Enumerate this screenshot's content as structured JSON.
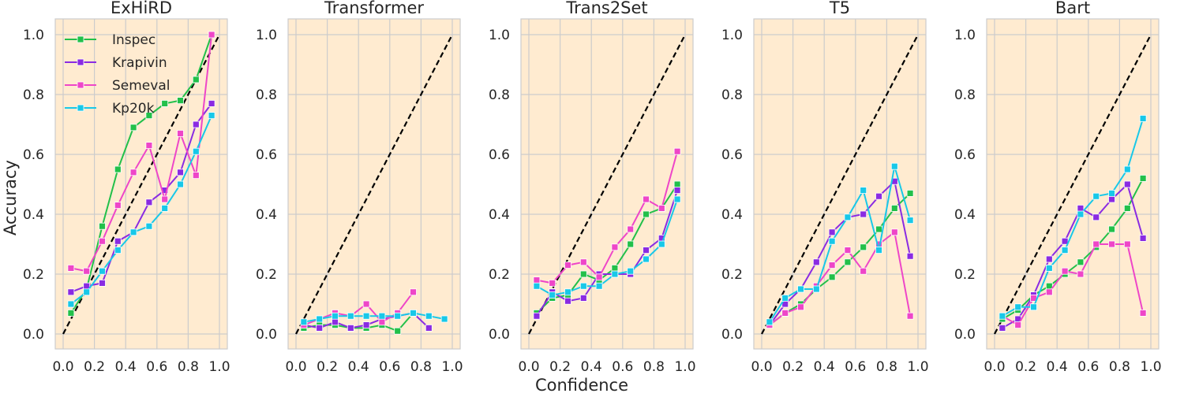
{
  "figure": {
    "xlabel": "Confidence",
    "ylabel": "Accuracy",
    "background": "#ffffff",
    "plot_background": "#ffebd0",
    "grid_color": "#cccccc",
    "diagonal_color": "#000000"
  },
  "legend": {
    "placement": "top-left",
    "entries": [
      "Inspec",
      "Krapivin",
      "Semeval",
      "Kp20k"
    ]
  },
  "series_colors": {
    "Inspec": "#22c04a",
    "Krapivin": "#8a2be2",
    "Semeval": "#ee46c8",
    "Kp20k": "#18c8e8"
  },
  "chart_data": [
    {
      "type": "line",
      "title": "ExHiRD",
      "xlabel": "",
      "ylabel": "Accuracy",
      "xlim": [
        0.0,
        1.0
      ],
      "ylim": [
        0.0,
        1.0
      ],
      "xticks": [
        "0.0",
        "0.2",
        "0.4",
        "0.6",
        "0.8",
        "1.0"
      ],
      "yticks": [
        "0.0",
        "0.2",
        "0.4",
        "0.6",
        "0.8",
        "1.0"
      ],
      "grid": true,
      "diagonal": true,
      "show_legend": true,
      "series": [
        {
          "name": "Inspec",
          "x": [
            0.05,
            0.15,
            0.25,
            0.35,
            0.45,
            0.55,
            0.65,
            0.75,
            0.85,
            0.95
          ],
          "y": [
            0.07,
            0.15,
            0.36,
            0.55,
            0.69,
            0.73,
            0.77,
            0.78,
            0.85,
            1.0
          ]
        },
        {
          "name": "Krapivin",
          "x": [
            0.05,
            0.15,
            0.25,
            0.35,
            0.45,
            0.55,
            0.65,
            0.75,
            0.85,
            0.95
          ],
          "y": [
            0.14,
            0.16,
            0.17,
            0.31,
            0.34,
            0.44,
            0.48,
            0.54,
            0.7,
            0.77
          ]
        },
        {
          "name": "Semeval",
          "x": [
            0.05,
            0.15,
            0.25,
            0.35,
            0.45,
            0.55,
            0.65,
            0.75,
            0.85,
            0.95
          ],
          "y": [
            0.22,
            0.21,
            0.31,
            0.43,
            0.54,
            0.63,
            0.45,
            0.67,
            0.53,
            1.0
          ]
        },
        {
          "name": "Kp20k",
          "x": [
            0.05,
            0.15,
            0.25,
            0.35,
            0.45,
            0.55,
            0.65,
            0.75,
            0.85,
            0.95
          ],
          "y": [
            0.1,
            0.14,
            0.21,
            0.28,
            0.34,
            0.36,
            0.42,
            0.5,
            0.61,
            0.73
          ]
        }
      ]
    },
    {
      "type": "line",
      "title": "Transformer",
      "xlabel": "",
      "ylabel": "",
      "xlim": [
        0.0,
        1.0
      ],
      "ylim": [
        0.0,
        1.0
      ],
      "xticks": [
        "0.0",
        "0.2",
        "0.4",
        "0.6",
        "0.8",
        "1.0"
      ],
      "yticks": [
        "0.0",
        "0.2",
        "0.4",
        "0.6",
        "0.8",
        "1.0"
      ],
      "grid": true,
      "diagonal": true,
      "show_legend": false,
      "series": [
        {
          "name": "Inspec",
          "x": [
            0.05,
            0.15,
            0.25,
            0.35,
            0.45,
            0.55,
            0.65,
            0.75
          ],
          "y": [
            0.02,
            0.03,
            0.03,
            0.02,
            0.02,
            0.03,
            0.01,
            0.07
          ]
        },
        {
          "name": "Krapivin",
          "x": [
            0.05,
            0.15,
            0.25,
            0.35,
            0.45,
            0.55,
            0.65,
            0.75,
            0.85
          ],
          "y": [
            0.03,
            0.02,
            0.04,
            0.02,
            0.03,
            0.05,
            0.06,
            0.07,
            0.02
          ]
        },
        {
          "name": "Semeval",
          "x": [
            0.05,
            0.15,
            0.25,
            0.35,
            0.45,
            0.55,
            0.65,
            0.75
          ],
          "y": [
            0.03,
            0.05,
            0.07,
            0.06,
            0.1,
            0.04,
            0.07,
            0.14
          ]
        },
        {
          "name": "Kp20k",
          "x": [
            0.05,
            0.15,
            0.25,
            0.35,
            0.45,
            0.55,
            0.65,
            0.75,
            0.85,
            0.95
          ],
          "y": [
            0.04,
            0.05,
            0.06,
            0.06,
            0.06,
            0.06,
            0.06,
            0.07,
            0.06,
            0.05
          ]
        }
      ]
    },
    {
      "type": "line",
      "title": "Trans2Set",
      "xlabel": "Confidence",
      "ylabel": "",
      "xlim": [
        0.0,
        1.0
      ],
      "ylim": [
        0.0,
        1.0
      ],
      "xticks": [
        "0.0",
        "0.2",
        "0.4",
        "0.6",
        "0.8",
        "1.0"
      ],
      "yticks": [
        "0.0",
        "0.2",
        "0.4",
        "0.6",
        "0.8",
        "1.0"
      ],
      "grid": true,
      "diagonal": true,
      "show_legend": false,
      "series": [
        {
          "name": "Inspec",
          "x": [
            0.05,
            0.15,
            0.25,
            0.35,
            0.45,
            0.55,
            0.65,
            0.75,
            0.85,
            0.95
          ],
          "y": [
            0.07,
            0.12,
            0.13,
            0.2,
            0.18,
            0.22,
            0.3,
            0.4,
            0.42,
            0.5
          ]
        },
        {
          "name": "Krapivin",
          "x": [
            0.05,
            0.15,
            0.25,
            0.35,
            0.45,
            0.55,
            0.65,
            0.75,
            0.85,
            0.95
          ],
          "y": [
            0.06,
            0.14,
            0.11,
            0.12,
            0.2,
            0.2,
            0.2,
            0.28,
            0.32,
            0.48
          ]
        },
        {
          "name": "Semeval",
          "x": [
            0.05,
            0.15,
            0.25,
            0.35,
            0.45,
            0.55,
            0.65,
            0.75,
            0.85,
            0.95
          ],
          "y": [
            0.18,
            0.17,
            0.23,
            0.24,
            0.19,
            0.29,
            0.35,
            0.45,
            0.42,
            0.61
          ]
        },
        {
          "name": "Kp20k",
          "x": [
            0.05,
            0.15,
            0.25,
            0.35,
            0.45,
            0.55,
            0.65,
            0.75,
            0.85,
            0.95
          ],
          "y": [
            0.16,
            0.13,
            0.14,
            0.16,
            0.16,
            0.2,
            0.21,
            0.25,
            0.3,
            0.45
          ]
        }
      ]
    },
    {
      "type": "line",
      "title": "T5",
      "xlabel": "",
      "ylabel": "",
      "xlim": [
        0.0,
        1.0
      ],
      "ylim": [
        0.0,
        1.0
      ],
      "xticks": [
        "0.0",
        "0.2",
        "0.4",
        "0.6",
        "0.8",
        "1.0"
      ],
      "yticks": [
        "0.0",
        "0.2",
        "0.4",
        "0.6",
        "0.8",
        "1.0"
      ],
      "grid": true,
      "diagonal": true,
      "show_legend": false,
      "series": [
        {
          "name": "Inspec",
          "x": [
            0.05,
            0.15,
            0.25,
            0.35,
            0.45,
            0.55,
            0.65,
            0.75,
            0.85,
            0.95
          ],
          "y": [
            0.03,
            0.07,
            0.1,
            0.15,
            0.19,
            0.24,
            0.29,
            0.35,
            0.42,
            0.47
          ]
        },
        {
          "name": "Krapivin",
          "x": [
            0.05,
            0.15,
            0.25,
            0.35,
            0.45,
            0.55,
            0.65,
            0.75,
            0.85,
            0.95
          ],
          "y": [
            0.03,
            0.1,
            0.15,
            0.24,
            0.34,
            0.39,
            0.4,
            0.46,
            0.51,
            0.26
          ]
        },
        {
          "name": "Semeval",
          "x": [
            0.05,
            0.15,
            0.25,
            0.35,
            0.45,
            0.55,
            0.65,
            0.75,
            0.85,
            0.95
          ],
          "y": [
            0.03,
            0.07,
            0.09,
            0.16,
            0.23,
            0.28,
            0.21,
            0.3,
            0.34,
            0.06
          ]
        },
        {
          "name": "Kp20k",
          "x": [
            0.05,
            0.15,
            0.25,
            0.35,
            0.45,
            0.55,
            0.65,
            0.75,
            0.85,
            0.95
          ],
          "y": [
            0.04,
            0.12,
            0.15,
            0.15,
            0.31,
            0.39,
            0.48,
            0.28,
            0.56,
            0.38
          ]
        }
      ]
    },
    {
      "type": "line",
      "title": "Bart",
      "xlabel": "",
      "ylabel": "",
      "xlim": [
        0.0,
        1.0
      ],
      "ylim": [
        0.0,
        1.0
      ],
      "xticks": [
        "0.0",
        "0.2",
        "0.4",
        "0.6",
        "0.8",
        "1.0"
      ],
      "yticks": [
        "0.0",
        "0.2",
        "0.4",
        "0.6",
        "0.8",
        "1.0"
      ],
      "grid": true,
      "diagonal": true,
      "show_legend": false,
      "series": [
        {
          "name": "Inspec",
          "x": [
            0.05,
            0.15,
            0.25,
            0.35,
            0.45,
            0.55,
            0.65,
            0.75,
            0.85,
            0.95
          ],
          "y": [
            0.05,
            0.08,
            0.13,
            0.16,
            0.2,
            0.24,
            0.29,
            0.35,
            0.42,
            0.52
          ]
        },
        {
          "name": "Krapivin",
          "x": [
            0.05,
            0.15,
            0.25,
            0.35,
            0.45,
            0.55,
            0.65,
            0.75,
            0.85,
            0.95
          ],
          "y": [
            0.02,
            0.05,
            0.13,
            0.25,
            0.31,
            0.42,
            0.39,
            0.45,
            0.5,
            0.32
          ]
        },
        {
          "name": "Semeval",
          "x": [
            0.05,
            0.15,
            0.25,
            0.35,
            0.45,
            0.55,
            0.65,
            0.75,
            0.85,
            0.95
          ],
          "y": [
            0.06,
            0.03,
            0.12,
            0.14,
            0.21,
            0.2,
            0.3,
            0.3,
            0.3,
            0.07
          ]
        },
        {
          "name": "Kp20k",
          "x": [
            0.05,
            0.15,
            0.25,
            0.35,
            0.45,
            0.55,
            0.65,
            0.75,
            0.85,
            0.95
          ],
          "y": [
            0.06,
            0.09,
            0.09,
            0.22,
            0.28,
            0.4,
            0.46,
            0.47,
            0.55,
            0.72
          ]
        }
      ]
    }
  ]
}
